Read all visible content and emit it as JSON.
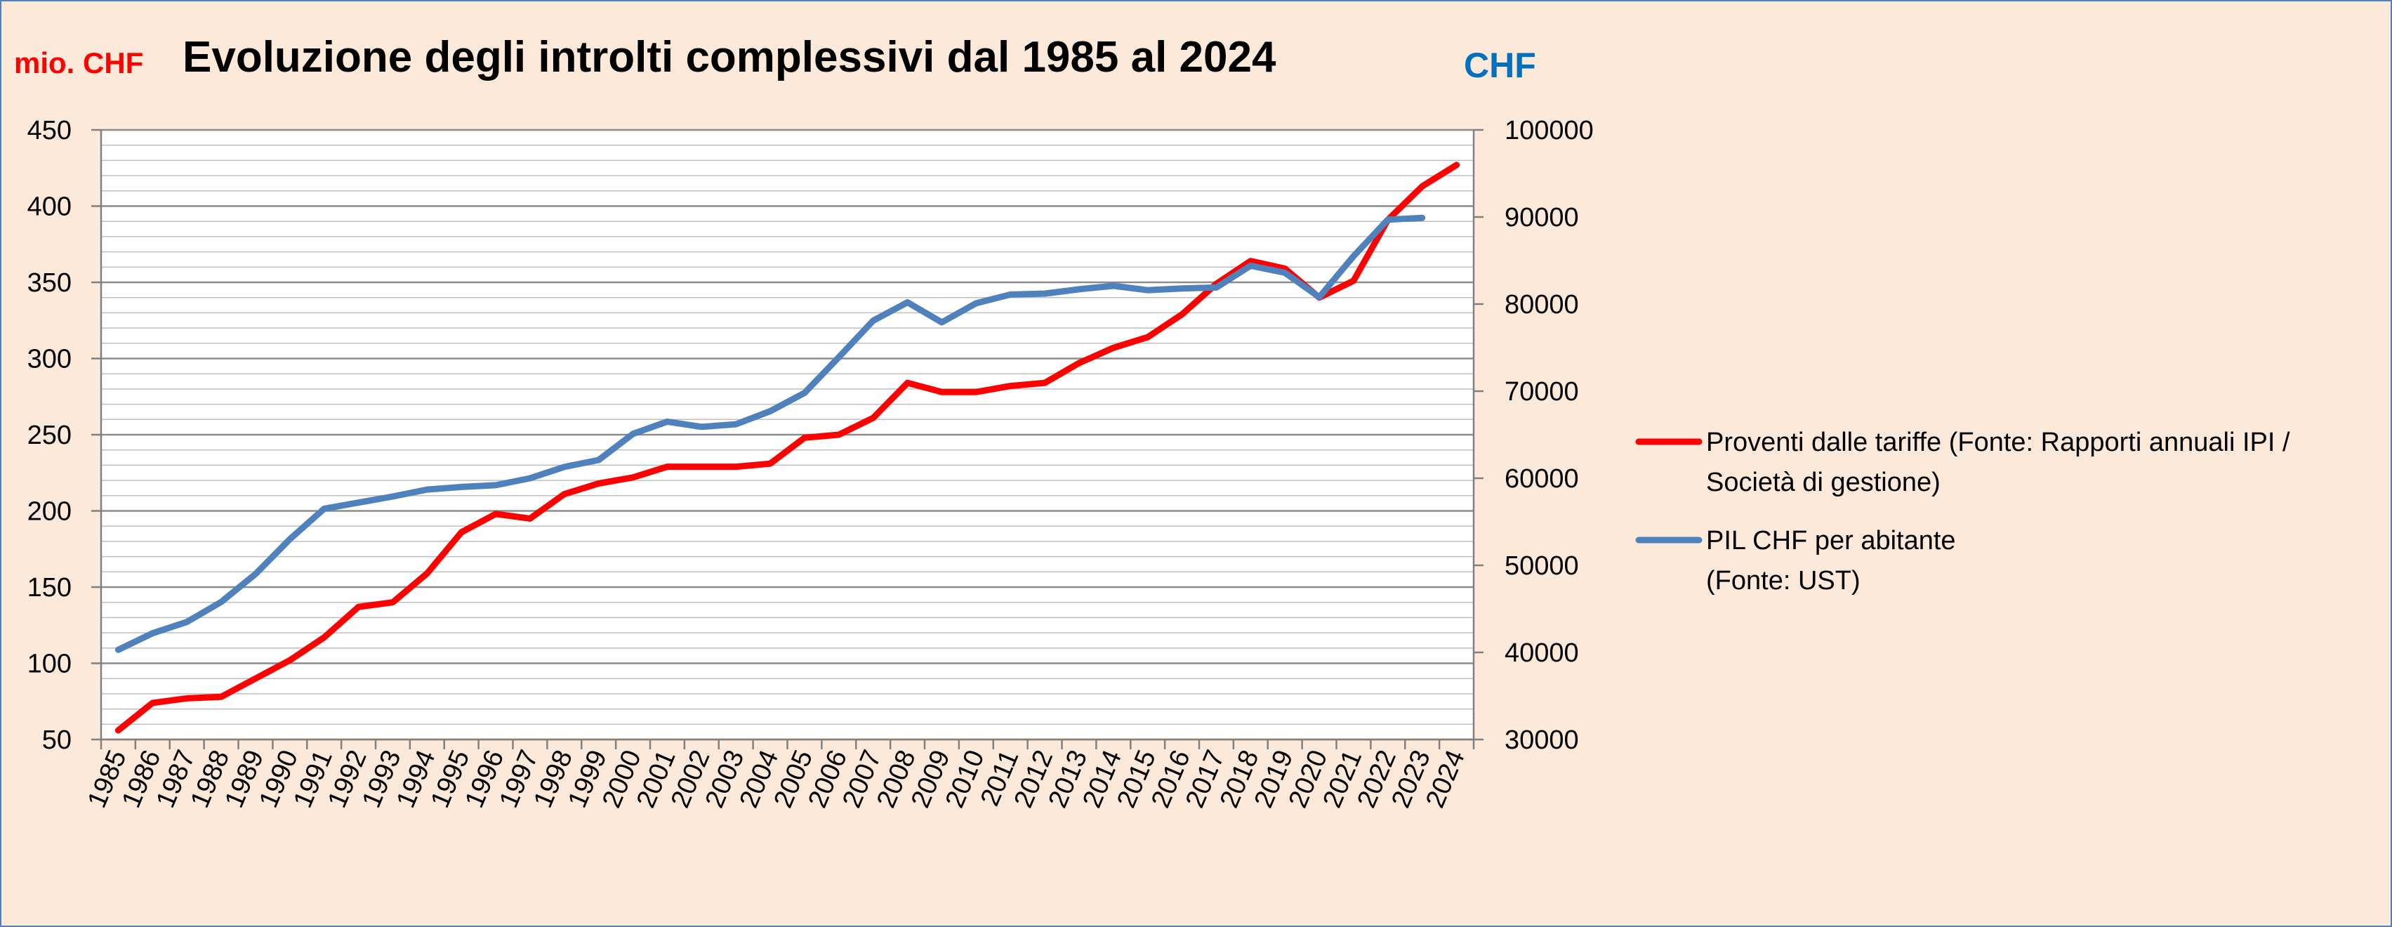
{
  "chart_data": {
    "type": "line",
    "title": "Evoluzione degli introlti complessivi dal 1985 al 2024",
    "left_axis_unit": "mio. CHF",
    "right_axis_unit": "CHF",
    "colors": {
      "left_unit": "#ff0000",
      "right_unit": "#0070c0",
      "series_red": "#ff0000",
      "series_blue": "#4f81bd",
      "background": "#fde9d9"
    },
    "x": [
      "1985",
      "1986",
      "1987",
      "1988",
      "1989",
      "1990",
      "1991",
      "1992",
      "1993",
      "1994",
      "1995",
      "1996",
      "1997",
      "1998",
      "1999",
      "2000",
      "2001",
      "2002",
      "2003",
      "2004",
      "2005",
      "2006",
      "2007",
      "2008",
      "2009",
      "2010",
      "2011",
      "2012",
      "2013",
      "2014",
      "2015",
      "2016",
      "2017",
      "2018",
      "2019",
      "2020",
      "2021",
      "2022",
      "2023",
      "2024"
    ],
    "ylim_left": [
      50,
      450
    ],
    "yticks_left": [
      "450",
      "400",
      "350",
      "300",
      "250",
      "200",
      "150",
      "100",
      "50"
    ],
    "ylim_right": [
      30000,
      100000
    ],
    "yticks_right": [
      "100000",
      "90000",
      "80000",
      "70000",
      "60000",
      "50000",
      "40000",
      "30000"
    ],
    "grid": true,
    "legend_position": "right",
    "series": [
      {
        "name": "Proventi dalle tariffe (Fonte: Rapporti annuali IPI / Società di gestione)",
        "legend_lines": [
          "Proventi dalle tariffe (Fonte: Rapporti annuali IPI /",
          "Società di gestione)"
        ],
        "axis": "left",
        "color": "#ff0000",
        "values": [
          56,
          74,
          77,
          78,
          90,
          102,
          117,
          137,
          140,
          159,
          186,
          198,
          195,
          211,
          218,
          222,
          229,
          229,
          229,
          231,
          248,
          250,
          261,
          284,
          278,
          278,
          282,
          284,
          297,
          307,
          314,
          329,
          349,
          364,
          359,
          340,
          351,
          391,
          413,
          427
        ]
      },
      {
        "name": "PIL CHF per abitante (Fonte: UST)",
        "legend_lines": [
          "PIL CHF per abitante",
          "(Fonte: UST)"
        ],
        "axis": "right",
        "color": "#4f81bd",
        "values": [
          40300,
          42200,
          43500,
          45800,
          49000,
          53000,
          56500,
          57200,
          57900,
          58700,
          59000,
          59200,
          60000,
          61300,
          62100,
          65100,
          66500,
          65900,
          66200,
          67700,
          69800,
          73900,
          78100,
          80200,
          77900,
          80100,
          81100,
          81200,
          81700,
          82100,
          81600,
          81800,
          81900,
          84400,
          83600,
          80800,
          85500,
          89700,
          89900,
          null
        ]
      }
    ]
  }
}
